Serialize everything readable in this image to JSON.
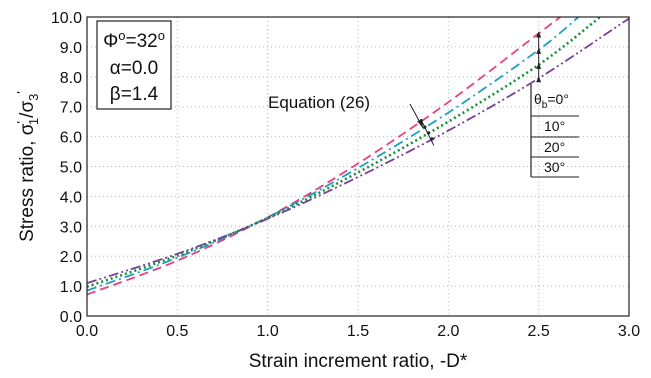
{
  "chart_data": {
    "type": "line",
    "xlabel": "Strain increment ratio,  -D*",
    "ylabel_parts": [
      "Stress ratio,  σ",
      "'",
      "1",
      "/σ",
      "3",
      "'"
    ],
    "xlim": [
      0.0,
      3.0
    ],
    "ylim": [
      0.0,
      10.0
    ],
    "x_ticks": [
      "0.0",
      "0.5",
      "1.0",
      "1.5",
      "2.0",
      "2.5",
      "3.0"
    ],
    "y_ticks": [
      "0.0",
      "1.0",
      "2.0",
      "3.0",
      "4.0",
      "5.0",
      "6.0",
      "7.0",
      "8.0",
      "9.0",
      "10.0"
    ],
    "grid": true,
    "params": [
      {
        "prefix": "Φ",
        "sup": "o",
        "mid": "=32",
        "sup2": "o"
      },
      {
        "text": "α=0.0"
      },
      {
        "text": "β=1.4"
      }
    ],
    "annotation": "Equation (26)",
    "legend": {
      "symbol": "θ",
      "subscript": "b",
      "entries": [
        "=0°",
        "10°",
        "20°",
        "30°"
      ]
    },
    "series": [
      {
        "theta": "0°",
        "color": "#e8417e",
        "dash": "9,5",
        "x": [
          0.0,
          0.5,
          1.0,
          1.5,
          2.0,
          2.5,
          2.62
        ],
        "y": [
          0.72,
          1.85,
          3.3,
          5.1,
          7.15,
          9.45,
          10.0
        ]
      },
      {
        "theta": "10°",
        "color": "#1e9fc4",
        "dash": "10,4,2,4",
        "x": [
          0.0,
          0.5,
          1.0,
          1.5,
          2.0,
          2.5,
          2.72
        ],
        "y": [
          0.85,
          1.95,
          3.3,
          4.95,
          6.8,
          8.9,
          10.0
        ]
      },
      {
        "theta": "20°",
        "color": "#15913a",
        "dash": "2,3",
        "x": [
          0.0,
          0.5,
          1.0,
          1.5,
          2.0,
          2.5,
          2.84
        ],
        "y": [
          0.98,
          2.02,
          3.28,
          4.8,
          6.5,
          8.4,
          10.0
        ]
      },
      {
        "theta": "30°",
        "color": "#7a3f9a",
        "dash": "10,3,2,3,2,3",
        "x": [
          0.0,
          0.5,
          1.0,
          1.5,
          2.0,
          2.5,
          3.0
        ],
        "y": [
          1.1,
          2.08,
          3.25,
          4.65,
          6.2,
          7.95,
          9.95
        ]
      }
    ]
  }
}
